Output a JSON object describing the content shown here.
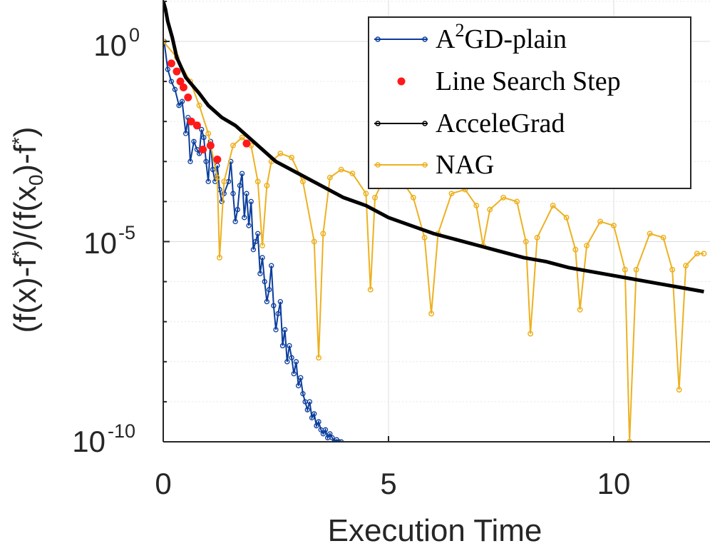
{
  "chart_data": {
    "type": "line",
    "title": "",
    "xlabel": "Execution Time",
    "ylabel": "(f(x)-f*)/(f(x0)-f*)",
    "ylabel_parts": {
      "p1": "(f(x)-f",
      "star1": "*",
      "p2": ")/(f(x",
      "sub0": "0",
      "p3": ")-f",
      "star2": "*",
      "p4": ")"
    },
    "xlim": [
      0,
      12
    ],
    "ylim_log10": [
      -10,
      1
    ],
    "yscale": "log",
    "grid": true,
    "legend_position": "top-right",
    "x_ticks": [
      "0",
      "5",
      "10"
    ],
    "y_ticks": [
      {
        "base": "10",
        "exp": "0"
      },
      {
        "base": "10",
        "exp": "-5"
      },
      {
        "base": "10",
        "exp": "-10"
      }
    ],
    "legend": {
      "a2gd_base": "A",
      "a2gd_sup": "2",
      "a2gd_rest": "GD-plain",
      "line_search": "Line Search Step",
      "accelegrad": "AcceleGrad",
      "nag": "NAG"
    },
    "colors": {
      "a2gd": "#0a3d9c",
      "line_search": "#ff1a1a",
      "accelegrad": "#000000",
      "nag": "#edb120"
    },
    "series": [
      {
        "name": "A2GD-plain",
        "x": [
          0.02,
          0.1,
          0.18,
          0.26,
          0.35,
          0.42,
          0.5,
          0.55,
          0.6,
          0.68,
          0.75,
          0.8,
          0.85,
          0.9,
          0.95,
          1.0,
          1.05,
          1.1,
          1.15,
          1.2,
          1.25,
          1.3,
          1.35,
          1.45,
          1.5,
          1.55,
          1.6,
          1.65,
          1.7,
          1.75,
          1.8,
          1.85,
          1.9,
          1.95,
          2.0,
          2.05,
          2.1,
          2.15,
          2.2,
          2.25,
          2.3,
          2.35,
          2.4,
          2.45,
          2.5,
          2.55,
          2.6,
          2.65,
          2.7,
          2.75,
          2.8,
          2.85,
          2.9,
          2.95,
          3.0,
          3.05,
          3.1,
          3.15,
          3.2,
          3.25,
          3.3,
          3.35,
          3.4,
          3.45,
          3.5,
          3.55,
          3.6,
          3.65,
          3.7,
          3.75,
          3.8,
          3.85,
          3.9,
          3.95
        ],
        "y_log10": [
          0,
          -0.7,
          -1.0,
          -1.2,
          -1.6,
          -1.5,
          -2.3,
          -1.9,
          -3.0,
          -2.5,
          -2.7,
          -2.8,
          -2.2,
          -2.4,
          -3.0,
          -3.5,
          -2.5,
          -3.2,
          -3.5,
          -3.1,
          -3.7,
          -4.0,
          -3.8,
          -3.5,
          -3.0,
          -3.8,
          -4.5,
          -4.2,
          -3.6,
          -3.3,
          -4.4,
          -3.8,
          -4.6,
          -4.0,
          -5.2,
          -5.0,
          -4.8,
          -5.8,
          -5.4,
          -6.0,
          -6.5,
          -6.2,
          -5.6,
          -6.6,
          -7.2,
          -6.8,
          -6.5,
          -7.6,
          -7.2,
          -8.0,
          -7.6,
          -7.9,
          -8.3,
          -8.0,
          -8.6,
          -8.4,
          -8.8,
          -9.0,
          -9.2,
          -9.0,
          -9.4,
          -9.3,
          -9.6,
          -9.5,
          -9.7,
          -9.8,
          -9.7,
          -9.9,
          -9.8,
          -9.9,
          -10.0,
          -9.95,
          -10.0,
          -10.0
        ]
      },
      {
        "name": "Line Search Step",
        "x": [
          0.18,
          0.3,
          0.38,
          0.45,
          0.55,
          0.62,
          0.75,
          0.88,
          1.05,
          1.2,
          1.85
        ],
        "y_log10": [
          -0.55,
          -0.75,
          -1.0,
          -1.15,
          -1.4,
          -2.0,
          -2.1,
          -2.7,
          -2.6,
          -2.95,
          -2.55
        ]
      },
      {
        "name": "AcceleGrad",
        "x": [
          0,
          0.05,
          0.1,
          0.2,
          0.3,
          0.5,
          0.8,
          1.0,
          1.3,
          1.6,
          2.0,
          2.5,
          3.0,
          3.5,
          4.0,
          4.5,
          5.0,
          5.5,
          6.0,
          6.5,
          7.0,
          7.5,
          8.0,
          8.5,
          9.0,
          9.5,
          10.0,
          10.5,
          11.0,
          11.5,
          12.0
        ],
        "y_log10": [
          1.0,
          0.8,
          0.5,
          0.1,
          -0.4,
          -0.9,
          -1.3,
          -1.6,
          -1.9,
          -2.1,
          -2.5,
          -3.0,
          -3.3,
          -3.6,
          -3.9,
          -4.1,
          -4.4,
          -4.6,
          -4.8,
          -4.95,
          -5.1,
          -5.25,
          -5.4,
          -5.5,
          -5.65,
          -5.75,
          -5.85,
          -5.95,
          -6.05,
          -6.15,
          -6.25
        ]
      },
      {
        "name": "NAG",
        "x": [
          0,
          0.3,
          0.6,
          0.8,
          1.0,
          1.2,
          1.25,
          1.35,
          1.55,
          1.75,
          1.95,
          2.1,
          2.2,
          2.3,
          2.4,
          2.6,
          2.85,
          3.1,
          3.35,
          3.45,
          3.55,
          3.7,
          3.95,
          4.2,
          4.5,
          4.6,
          4.7,
          4.95,
          5.25,
          5.55,
          5.8,
          5.95,
          6.1,
          6.4,
          6.7,
          6.95,
          7.1,
          7.25,
          7.55,
          7.85,
          8.05,
          8.15,
          8.3,
          8.65,
          8.95,
          9.15,
          9.25,
          9.4,
          9.7,
          10.0,
          10.25,
          10.35,
          10.5,
          10.8,
          11.1,
          11.3,
          11.45,
          11.6,
          11.85,
          12.0
        ],
        "y_log10": [
          0,
          -0.4,
          -1.0,
          -1.6,
          -2.3,
          -3.4,
          -5.4,
          -3.5,
          -2.6,
          -2.4,
          -2.6,
          -3.5,
          -5.1,
          -3.6,
          -3.0,
          -2.8,
          -2.9,
          -3.5,
          -5.0,
          -7.9,
          -4.8,
          -3.4,
          -3.2,
          -3.3,
          -3.8,
          -6.2,
          -3.9,
          -3.3,
          -3.4,
          -3.9,
          -4.9,
          -6.8,
          -4.8,
          -3.8,
          -3.7,
          -4.1,
          -5.1,
          -4.2,
          -3.9,
          -4.0,
          -5.0,
          -7.3,
          -4.9,
          -4.1,
          -4.4,
          -5.2,
          -6.7,
          -5.1,
          -4.5,
          -4.6,
          -5.7,
          -10.0,
          -5.7,
          -4.8,
          -4.9,
          -5.7,
          -8.7,
          -5.6,
          -5.3,
          -5.3
        ]
      }
    ]
  }
}
